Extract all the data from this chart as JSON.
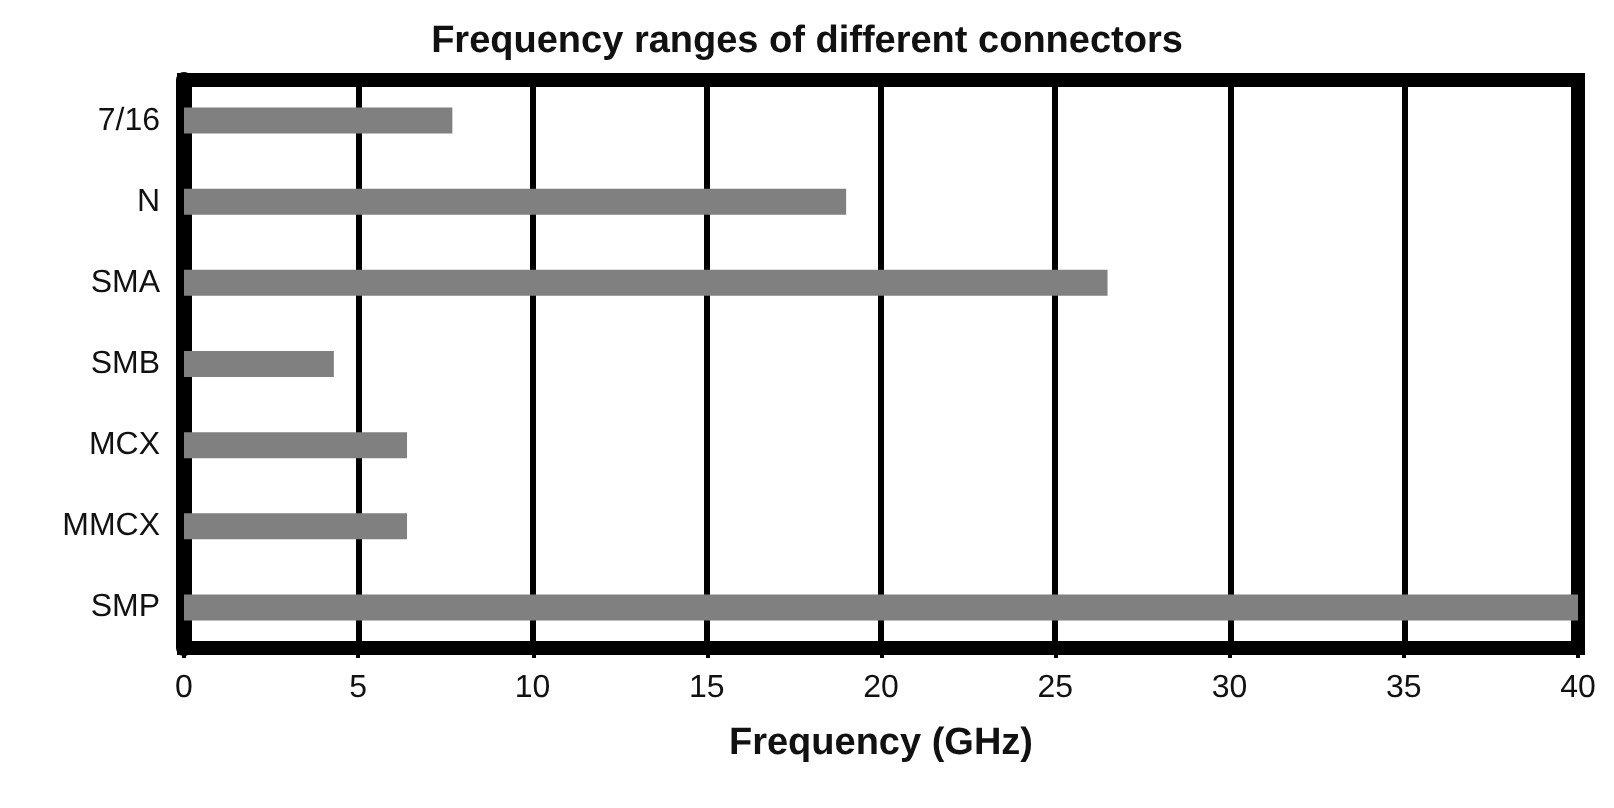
{
  "chart_data": {
    "type": "bar",
    "orientation": "horizontal",
    "title": "Frequency ranges of different connectors",
    "xlabel": "Frequency (GHz)",
    "categories": [
      "7/16",
      "N",
      "SMA",
      "SMB",
      "MCX",
      "MMCX",
      "SMP"
    ],
    "values": [
      7.7,
      19,
      26.5,
      4.3,
      6.4,
      6.4,
      40
    ],
    "color": "#808080",
    "xlim": [
      0,
      40
    ],
    "xticks": [
      0,
      5,
      10,
      15,
      20,
      25,
      30,
      35,
      40
    ],
    "grid": "x"
  }
}
